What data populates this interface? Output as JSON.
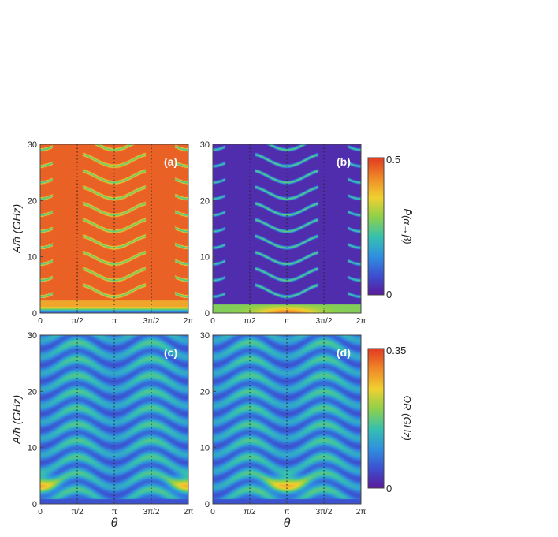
{
  "chart_data": [
    {
      "type": "heatmap",
      "panel_label": "(a)",
      "colorbar": "top",
      "pattern": "population_high",
      "xlim": [
        0,
        6.283
      ],
      "ylim": [
        0,
        30
      ],
      "xlabel": "",
      "ylabel": "A/ħ (GHz)"
    },
    {
      "type": "heatmap",
      "panel_label": "(b)",
      "colorbar": "top",
      "pattern": "population_low",
      "xlim": [
        0,
        6.283
      ],
      "ylim": [
        0,
        30
      ],
      "xlabel": "",
      "ylabel": ""
    },
    {
      "type": "heatmap",
      "panel_label": "(c)",
      "colorbar": "bottom",
      "pattern": "rabi_c",
      "xlim": [
        0,
        6.283
      ],
      "ylim": [
        0,
        30
      ],
      "xlabel": "θ",
      "ylabel": "A/ħ (GHz)"
    },
    {
      "type": "heatmap",
      "panel_label": "(d)",
      "colorbar": "bottom",
      "pattern": "rabi_d",
      "xlim": [
        0,
        6.283
      ],
      "ylim": [
        0,
        30
      ],
      "xlabel": "θ",
      "ylabel": ""
    }
  ],
  "axes": {
    "x_ticks": [
      {
        "value": 0,
        "label": "0"
      },
      {
        "value": 1.5708,
        "label": "π/2"
      },
      {
        "value": 3.1416,
        "label": "π"
      },
      {
        "value": 4.7124,
        "label": "3π/2"
      },
      {
        "value": 6.2832,
        "label": "2π"
      }
    ],
    "y_ticks": [
      {
        "value": 0,
        "label": "0"
      },
      {
        "value": 10,
        "label": "10"
      },
      {
        "value": 20,
        "label": "20"
      },
      {
        "value": 30,
        "label": "30"
      }
    ],
    "dotted_lines_at": [
      1.5708,
      3.1416,
      4.7124
    ]
  },
  "colorbars": {
    "top": {
      "max_label": "0.5",
      "min_label": "0",
      "label": "P̄(α→β)",
      "range": [
        0,
        0.5
      ]
    },
    "bottom": {
      "max_label": "0.35",
      "min_label": "0",
      "label": "ΩR (GHz)",
      "range": [
        0,
        0.35
      ]
    }
  },
  "colormap": [
    "#5a1a9a",
    "#3d4fd0",
    "#2f8fe0",
    "#35c0b0",
    "#8fd04a",
    "#f0d030",
    "#f08a28",
    "#e23a22"
  ]
}
